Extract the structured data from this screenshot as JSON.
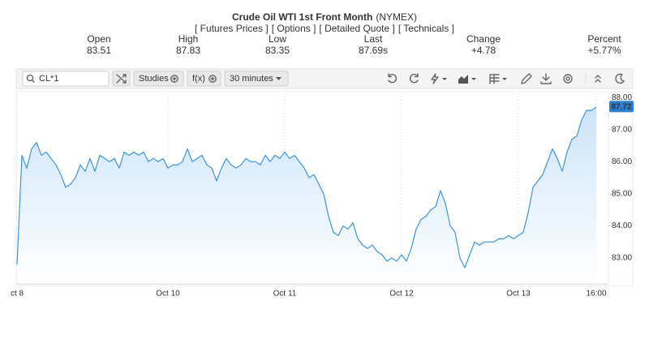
{
  "quote": {
    "title": "Crude Oil WTI 1st Front Month",
    "exchange": "(NYMEX)",
    "links": [
      "[ Futures Prices ]",
      "[ Options ]",
      "[ Detailed Quote ]",
      "[ Technicals ]"
    ],
    "stats": [
      {
        "label": "Open",
        "value": "83.51"
      },
      {
        "label": "High",
        "value": "87.83"
      },
      {
        "label": "Low",
        "value": "83.35"
      },
      {
        "label": "Last",
        "value": "87.69s"
      },
      {
        "label": "Change",
        "value": "+4.78"
      },
      {
        "label": "Percent",
        "value": "+5.77%"
      }
    ]
  },
  "toolbar": {
    "symbol": "CL*1",
    "buttons": [
      "Studies",
      "f(x)",
      "30 minutes"
    ]
  },
  "chart_data": {
    "type": "line",
    "categories": [
      "ct 8",
      null,
      null,
      null,
      null,
      null,
      null,
      null,
      null,
      null,
      null,
      null,
      null,
      null,
      null,
      null,
      null,
      null,
      null,
      null,
      null,
      null,
      null,
      null,
      null,
      null,
      null,
      null,
      null,
      null,
      null,
      "Oct 10",
      null,
      null,
      null,
      null,
      null,
      null,
      null,
      null,
      null,
      null,
      null,
      null,
      null,
      null,
      null,
      null,
      null,
      null,
      null,
      null,
      null,
      null,
      null,
      "Oct 11",
      null,
      null,
      null,
      null,
      null,
      null,
      null,
      null,
      null,
      null,
      null,
      null,
      null,
      null,
      null,
      null,
      null,
      null,
      null,
      null,
      null,
      null,
      null,
      "Oct 12",
      null,
      null,
      null,
      null,
      null,
      null,
      null,
      null,
      null,
      null,
      null,
      null,
      null,
      null,
      null,
      null,
      null,
      null,
      null,
      null,
      null,
      null,
      null,
      "Oct 13",
      null,
      null,
      null,
      null,
      null,
      null,
      null,
      null,
      null,
      null,
      null,
      null,
      null,
      null,
      null,
      "16:00"
    ],
    "values": [
      82.8,
      86.2,
      85.8,
      86.4,
      86.6,
      86.2,
      86.3,
      86.1,
      85.9,
      85.6,
      85.2,
      85.3,
      85.5,
      85.9,
      85.7,
      86.1,
      85.7,
      86.2,
      86.1,
      86.0,
      86.1,
      85.8,
      86.3,
      86.2,
      86.3,
      86.2,
      86.3,
      86.0,
      86.1,
      86.0,
      86.1,
      85.8,
      85.9,
      85.9,
      86.0,
      86.4,
      86.0,
      86.1,
      86.2,
      85.9,
      85.8,
      85.4,
      85.8,
      86.1,
      85.9,
      85.8,
      85.9,
      86.1,
      86.0,
      86.0,
      85.9,
      86.2,
      86.0,
      86.2,
      86.1,
      86.3,
      86.1,
      86.2,
      86.0,
      85.8,
      85.5,
      85.6,
      85.3,
      85.0,
      84.3,
      83.8,
      83.7,
      84.0,
      83.9,
      84.1,
      83.6,
      83.4,
      83.3,
      83.4,
      83.2,
      83.1,
      82.9,
      83.0,
      82.9,
      83.1,
      82.9,
      83.3,
      83.9,
      84.2,
      84.3,
      84.5,
      84.6,
      85.1,
      84.7,
      84.0,
      83.8,
      83.0,
      82.7,
      83.1,
      83.5,
      83.4,
      83.5,
      83.5,
      83.5,
      83.6,
      83.6,
      83.7,
      83.6,
      83.7,
      83.8,
      84.4,
      85.2,
      85.4,
      85.6,
      86.0,
      86.4,
      86.1,
      85.7,
      86.3,
      86.7,
      86.8,
      87.3,
      87.6,
      87.6,
      87.7
    ],
    "color": "#3d94db",
    "last_price": 87.72,
    "ylim": [
      82.19,
      88.13
    ],
    "yticks": [
      {
        "value": 83,
        "label": "83.00"
      },
      {
        "value": 84,
        "label": "84.00"
      },
      {
        "value": 85,
        "label": "85.00"
      },
      {
        "value": 86,
        "label": "86.00"
      },
      {
        "value": 87,
        "label": "87.00"
      },
      {
        "value": 88,
        "label": "88.00"
      }
    ],
    "grid": true
  }
}
